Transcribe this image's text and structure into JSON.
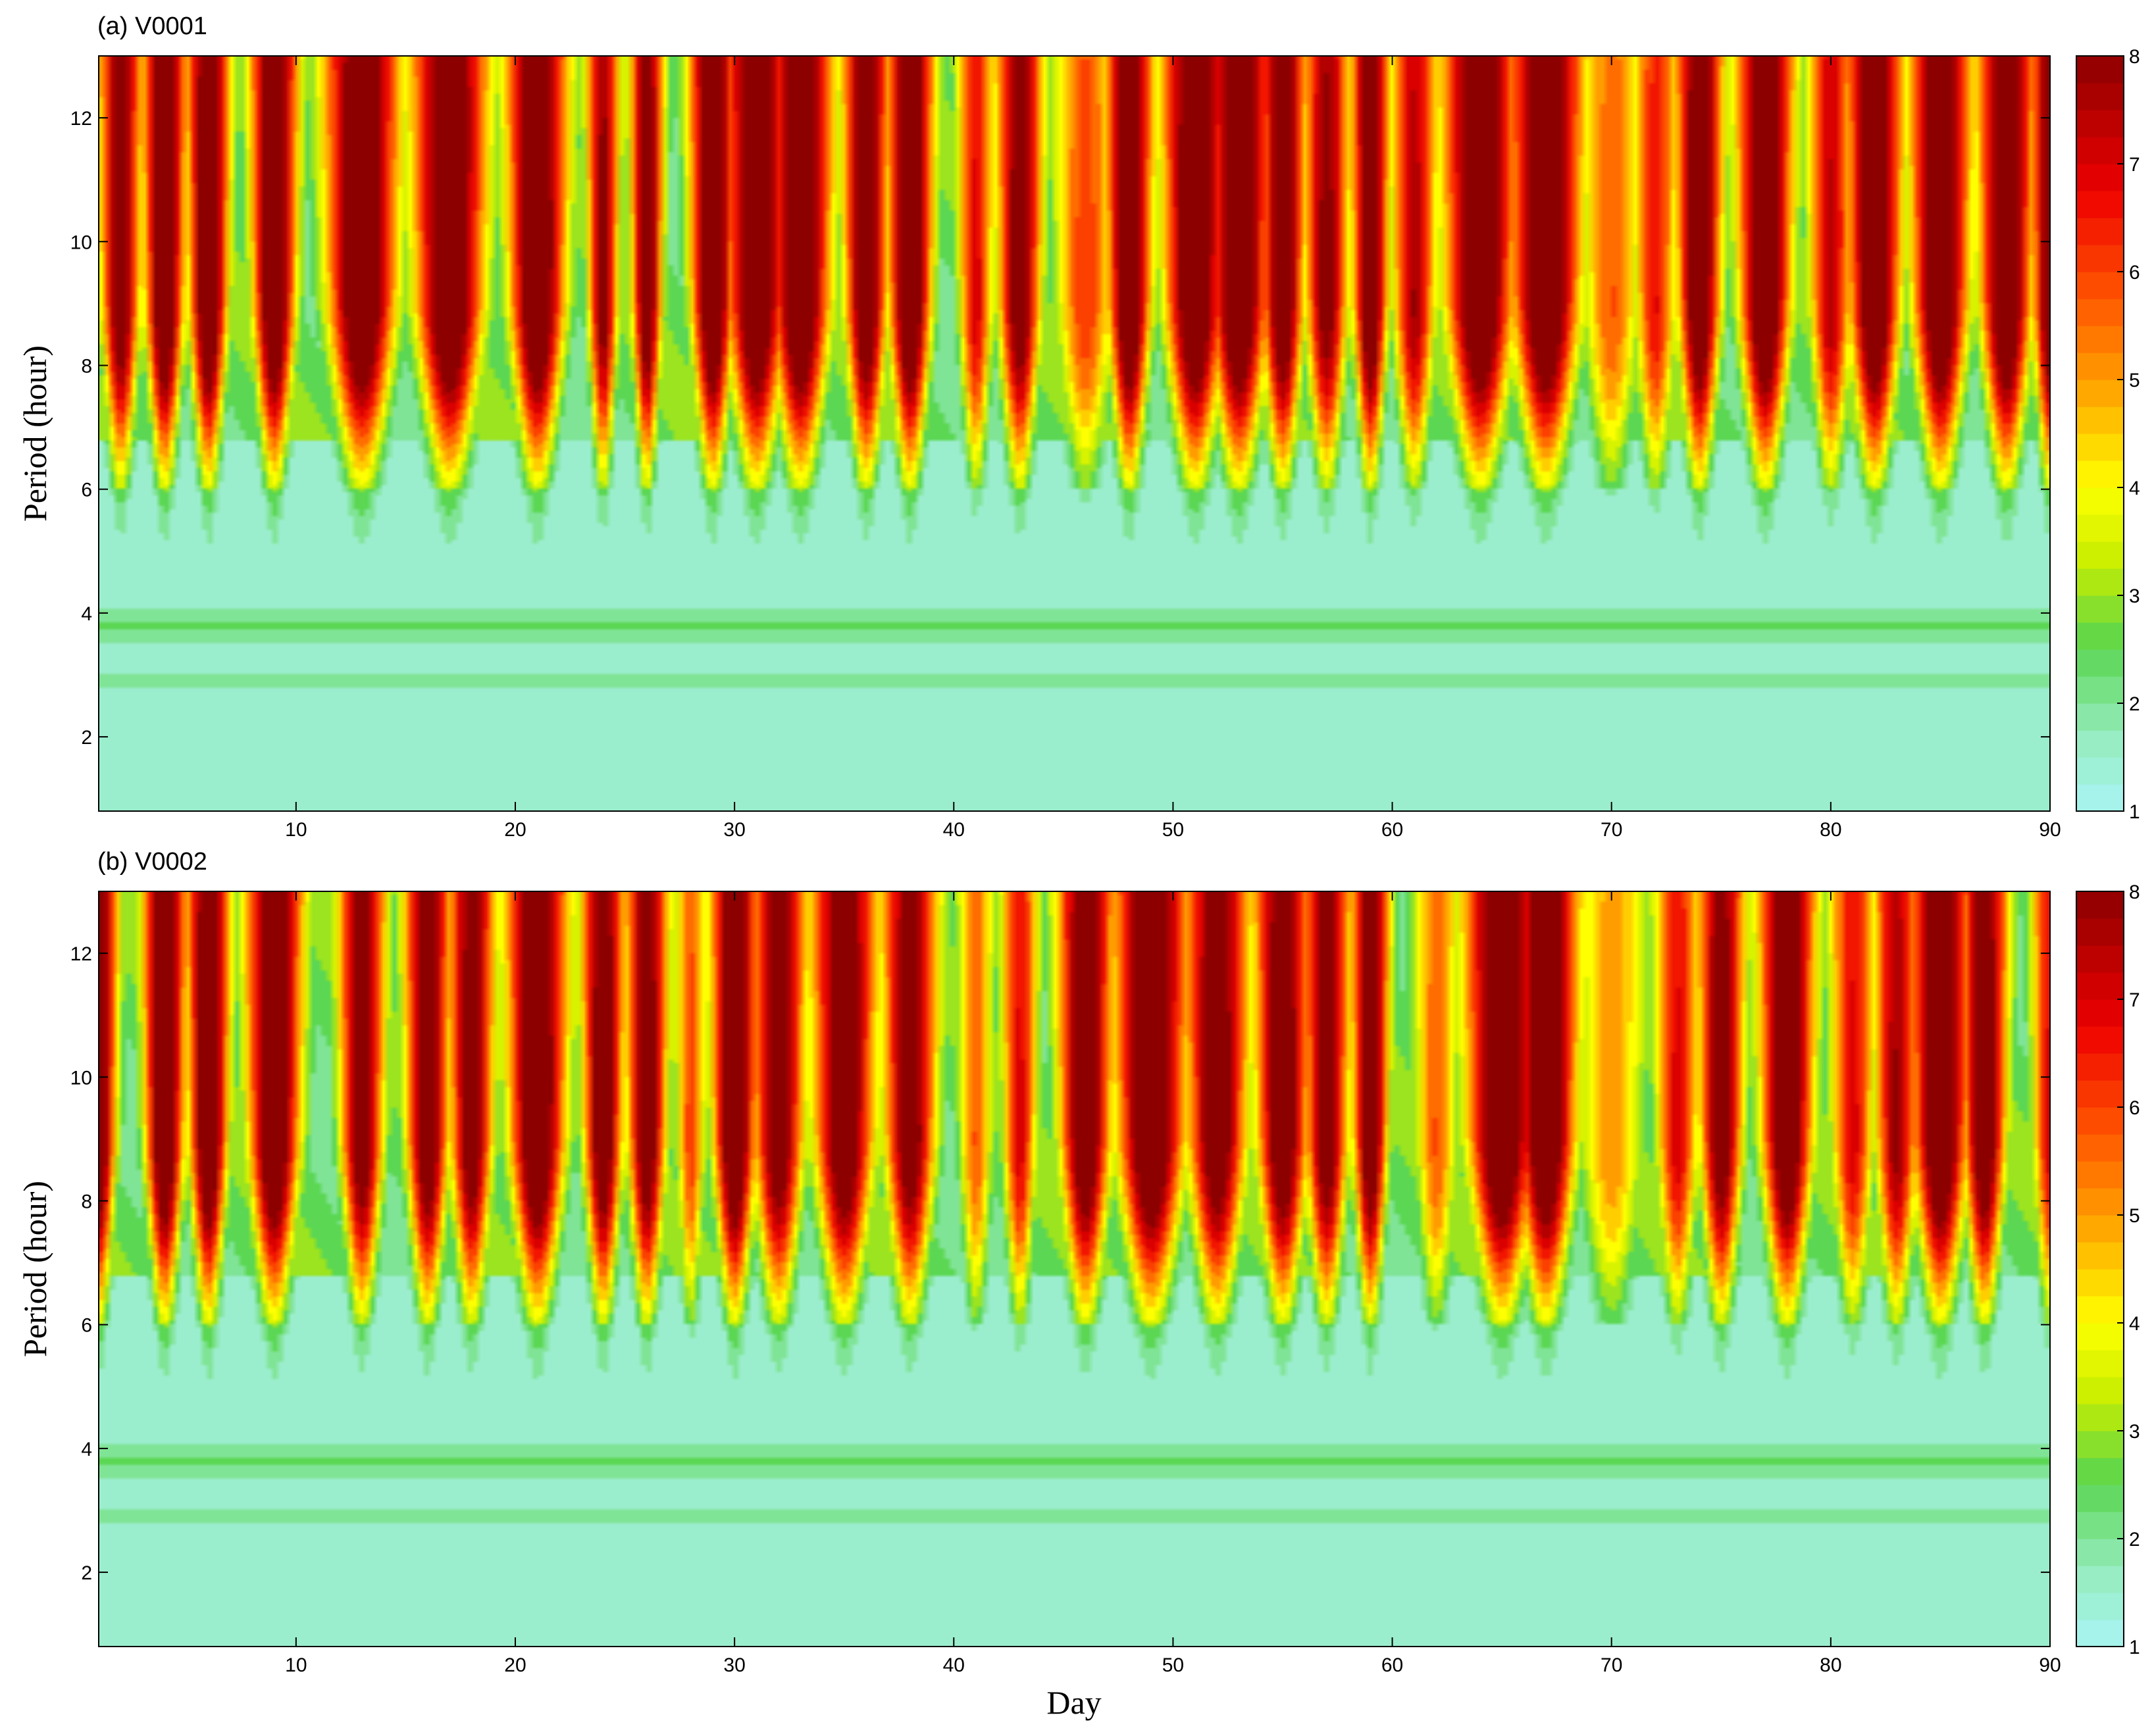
{
  "chart_data": [
    {
      "type": "heatmap",
      "title": "(a) V0001",
      "xlabel": "",
      "ylabel": "Period (hour)",
      "xlim": [
        1,
        90
      ],
      "ylim": [
        0.8,
        13
      ],
      "x_ticks": [
        "10",
        "20",
        "30",
        "40",
        "50",
        "60",
        "70",
        "80",
        "90"
      ],
      "y_ticks": [
        "2",
        "4",
        "6",
        "8",
        "10",
        "12"
      ],
      "colorbar": {
        "min": 1,
        "max": 8,
        "ticks": [
          "1",
          "2",
          "3",
          "4",
          "5",
          "6",
          "7",
          "8"
        ]
      },
      "peak_days": [
        2,
        4,
        6,
        9,
        13,
        17,
        21,
        24,
        26,
        29,
        31,
        33,
        36,
        38,
        41,
        43,
        46,
        48,
        51,
        53,
        55,
        57,
        59,
        61,
        64,
        67,
        70,
        72,
        74,
        77,
        80,
        82,
        85,
        88,
        90
      ],
      "peak_intensity": [
        7.2,
        8,
        8,
        8,
        8,
        8,
        8,
        6.8,
        7.4,
        8,
        8,
        8,
        7.6,
        8,
        5.5,
        7.2,
        4.6,
        8,
        8,
        8,
        7.6,
        6.8,
        7.8,
        6.2,
        8,
        8,
        4.2,
        5.2,
        7.8,
        8,
        6,
        8,
        8,
        8,
        7.6
      ],
      "peak_period_hours": 9,
      "peak_width_days": [
        0.9,
        0.9,
        0.9,
        1.0,
        1.6,
        1.6,
        1.3,
        0.7,
        0.7,
        1.0,
        1.4,
        1.4,
        1.0,
        1.0,
        0.8,
        1.0,
        1.4,
        1.0,
        1.4,
        1.4,
        1.0,
        1.0,
        0.8,
        1.0,
        1.6,
        1.6,
        1.4,
        1.0,
        1.0,
        1.2,
        1.0,
        1.2,
        1.3,
        1.2,
        0.8
      ],
      "low_band_hours": [
        3.8,
        2.9,
        1.0
      ]
    },
    {
      "type": "heatmap",
      "title": "(b) V0002",
      "xlabel": "Day",
      "ylabel": "Period (hour)",
      "xlim": [
        1,
        90
      ],
      "ylim": [
        0.8,
        13
      ],
      "x_ticks": [
        "10",
        "20",
        "30",
        "40",
        "50",
        "60",
        "70",
        "80",
        "90"
      ],
      "y_ticks": [
        "2",
        "4",
        "6",
        "8",
        "10",
        "12"
      ],
      "colorbar": {
        "min": 1,
        "max": 8,
        "ticks": [
          "1",
          "2",
          "3",
          "4",
          "5",
          "6",
          "7",
          "8"
        ]
      },
      "peak_days": [
        1,
        4,
        6,
        9,
        13,
        16,
        18,
        21,
        24,
        26,
        28,
        30,
        32,
        35,
        38,
        41,
        43,
        46,
        49,
        52,
        55,
        57,
        59,
        62,
        65,
        67,
        70,
        73,
        75,
        78,
        81,
        83,
        85,
        87,
        90
      ],
      "peak_intensity": [
        7.6,
        8,
        8,
        8,
        7.2,
        7.4,
        7.2,
        8,
        7.6,
        7.4,
        4.5,
        8,
        7.2,
        7.6,
        7.2,
        4.2,
        5.5,
        7.6,
        8,
        7.4,
        7.6,
        7.2,
        7.6,
        4.2,
        8,
        8,
        3.6,
        5.5,
        7.2,
        7.8,
        5.5,
        6.4,
        8,
        7.6,
        5.5
      ],
      "peak_period_hours": 9,
      "peak_width_days": [
        0.8,
        0.9,
        0.9,
        1.2,
        1.0,
        1.0,
        1.0,
        1.3,
        0.9,
        0.9,
        0.7,
        1.0,
        1.2,
        1.4,
        1.2,
        0.8,
        0.8,
        1.2,
        1.6,
        1.4,
        1.2,
        1.0,
        0.8,
        1.0,
        1.6,
        1.4,
        1.6,
        1.0,
        1.0,
        1.2,
        1.0,
        1.0,
        1.3,
        1.0,
        0.8
      ],
      "low_band_hours": [
        3.8,
        2.9,
        1.0
      ]
    }
  ]
}
